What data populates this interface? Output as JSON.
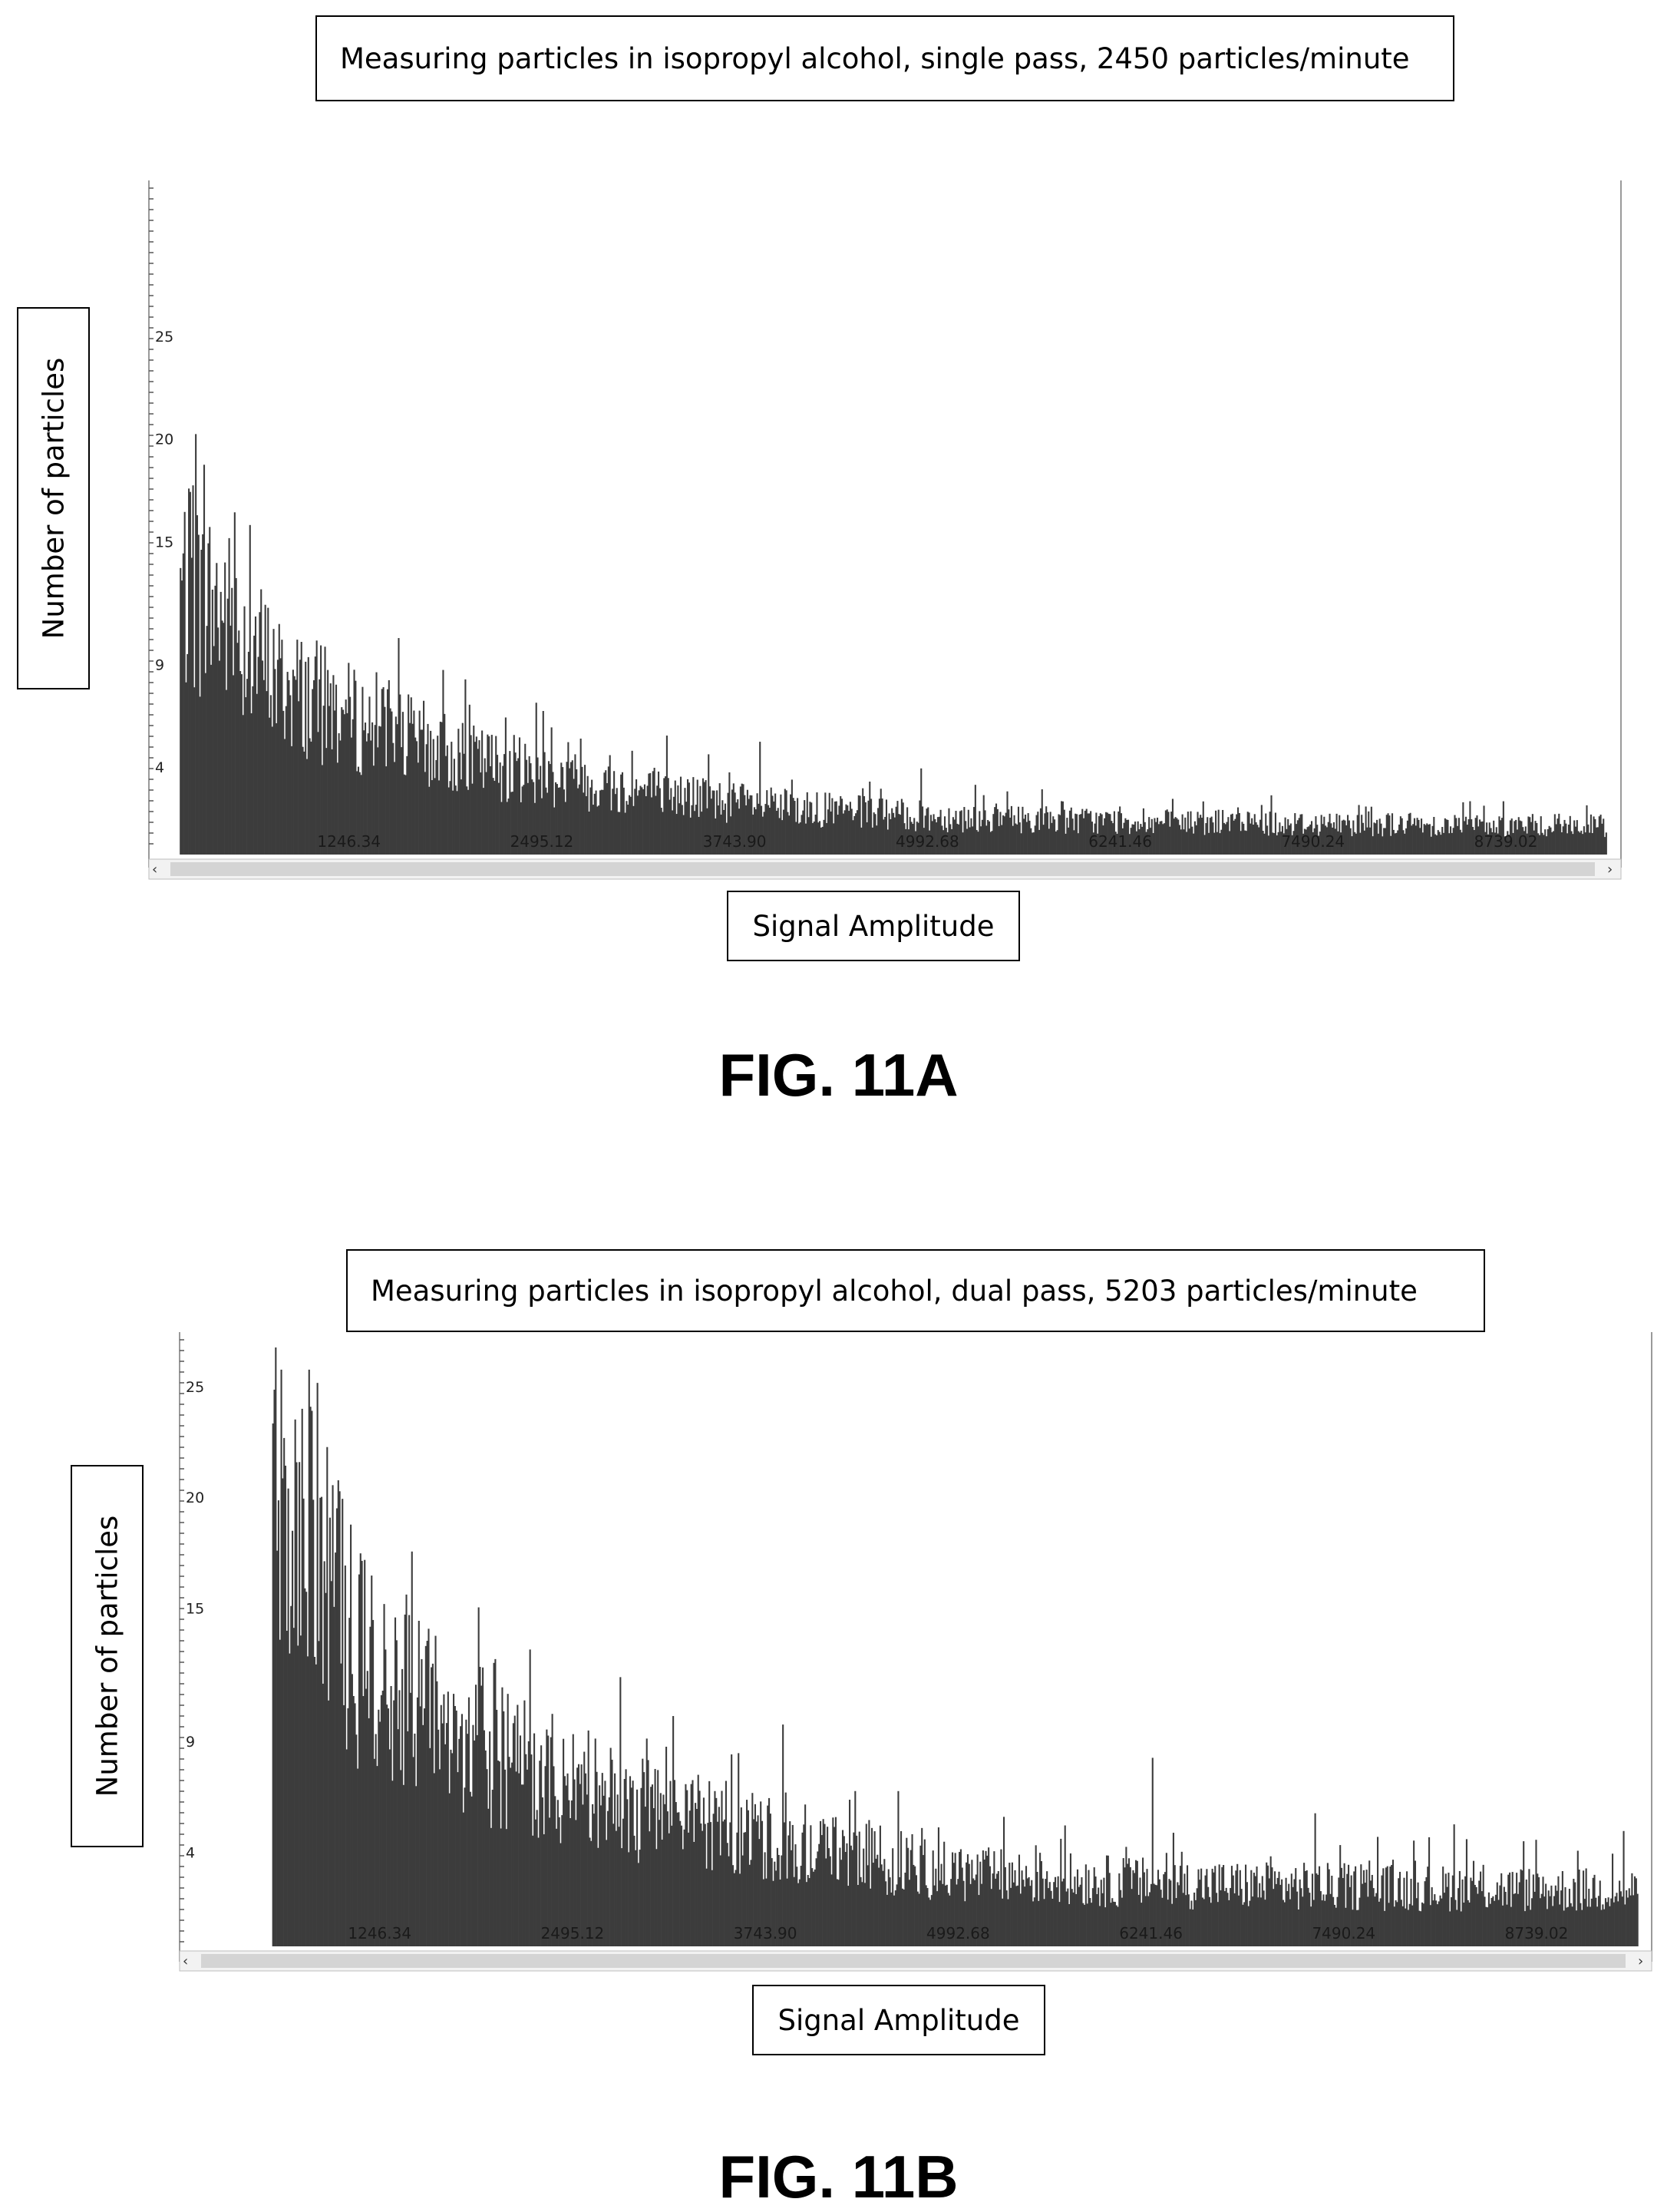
{
  "figures": [
    {
      "title": "Measuring particles in isopropyl alcohol, single pass, 2450 particles/minute",
      "ylabel": "Number of particles",
      "xlabel": "Signal Amplitude",
      "caption": "FIG. 11A"
    },
    {
      "title": "Measuring particles in isopropyl alcohol, dual pass, 5203 particles/minute",
      "ylabel": "Number of particles",
      "xlabel": "Signal Amplitude",
      "caption": "FIG. 11B"
    }
  ],
  "colors": {
    "bars": "#3c3c3c",
    "scrollbar": "#d4d4d4",
    "frame": "#9a9a9a"
  },
  "chart_data": [
    {
      "type": "bar",
      "title": "Measuring particles in isopropyl alcohol, single pass, 2450 particles/minute",
      "xlabel": "Signal Amplitude",
      "ylabel": "Number of particles",
      "xlim": [
        0,
        9400
      ],
      "ylim": [
        0,
        28
      ],
      "x_ticks": [
        "1246.34",
        "2495.12",
        "3743.90",
        "4992.68",
        "6241.46",
        "7490.24",
        "8739.02"
      ],
      "x_tick_values": [
        1246.34,
        2495.12,
        3743.9,
        4992.68,
        6241.46,
        7490.24,
        8739.02
      ],
      "y_ticks": [
        "4",
        "9",
        "15",
        "20",
        "25"
      ],
      "y_tick_values": [
        4,
        9,
        15,
        20,
        25
      ],
      "bin_start": 150,
      "bin_end": 9400,
      "envelope": [
        [
          150,
          14
        ],
        [
          400,
          13
        ],
        [
          800,
          9
        ],
        [
          1300,
          7
        ],
        [
          2000,
          5
        ],
        [
          3000,
          3.5
        ],
        [
          4000,
          2.5
        ],
        [
          5000,
          2
        ],
        [
          6500,
          1.7
        ],
        [
          9400,
          1.5
        ]
      ],
      "peaks": [
        [
          250,
          20.5
        ],
        [
          230,
          18
        ],
        [
          480,
          13
        ],
        [
          1100,
          9
        ],
        [
          1500,
          8.5
        ],
        [
          1850,
          9
        ],
        [
          2500,
          7
        ],
        [
          2550,
          6.2
        ],
        [
          3300,
          5.8
        ],
        [
          3900,
          5.5
        ],
        [
          4950,
          4.2
        ],
        [
          5300,
          3.4
        ],
        [
          8500,
          2.6
        ],
        [
          7000,
          2.3
        ]
      ],
      "grid": false,
      "legend": "none"
    },
    {
      "type": "bar",
      "title": "Measuring particles in isopropyl alcohol, dual pass, 5203 particles/minute",
      "xlabel": "Signal Amplitude",
      "ylabel": "Number of particles",
      "xlim": [
        0,
        9400
      ],
      "ylim": [
        0,
        27
      ],
      "x_ticks": [
        "1246.34",
        "2495.12",
        "3743.90",
        "4992.68",
        "6241.46",
        "7490.24",
        "8739.02"
      ],
      "x_tick_values": [
        1246.34,
        2495.12,
        3743.9,
        4992.68,
        6241.46,
        7490.24,
        8739.02
      ],
      "y_ticks": [
        "4",
        "9",
        "15",
        "20",
        "25"
      ],
      "y_tick_values": [
        4,
        9,
        15,
        20,
        25
      ],
      "bin_start": 550,
      "bin_end": 9400,
      "envelope": [
        [
          550,
          21
        ],
        [
          800,
          19
        ],
        [
          1100,
          14
        ],
        [
          1600,
          11
        ],
        [
          2200,
          8.5
        ],
        [
          3000,
          6.5
        ],
        [
          4000,
          5
        ],
        [
          5000,
          3.5
        ],
        [
          6500,
          3
        ],
        [
          9400,
          2.7
        ]
      ],
      "peaks": [
        [
          600,
          26
        ],
        [
          780,
          26
        ],
        [
          1450,
          17.8
        ],
        [
          1600,
          14
        ],
        [
          3100,
          9
        ],
        [
          3850,
          10
        ],
        [
          6250,
          8.5
        ],
        [
          4600,
          7
        ],
        [
          7300,
          6
        ],
        [
          8200,
          5.5
        ],
        [
          9300,
          5.2
        ]
      ],
      "grid": false,
      "legend": "none"
    }
  ]
}
